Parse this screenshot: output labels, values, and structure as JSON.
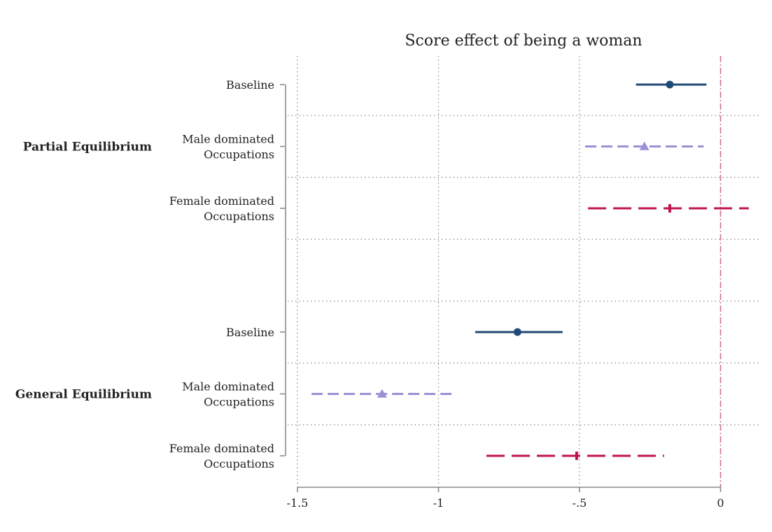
{
  "chart_data": {
    "type": "coefficient-plot",
    "title": "Score effect of being a woman",
    "xlim": [
      -1.5,
      0.13
    ],
    "x_ticks": [
      -1.5,
      -1,
      -0.5,
      0
    ],
    "x_tick_labels": [
      "-1.5",
      "-1",
      "-.5",
      "0"
    ],
    "reference_line_x": 0,
    "grid": "dotted",
    "groups": [
      {
        "label": "Partial Equilibrium",
        "rows": [
          {
            "label": [
              "Baseline"
            ],
            "series": "baseline",
            "estimate": -0.18,
            "ci": [
              -0.3,
              -0.05
            ]
          },
          {
            "label": [
              "Male dominated",
              "Occupations"
            ],
            "series": "male",
            "estimate": -0.27,
            "ci": [
              -0.48,
              -0.06
            ]
          },
          {
            "label": [
              "Female dominated",
              "Occupations"
            ],
            "series": "female",
            "estimate": -0.18,
            "ci": [
              -0.47,
              0.1
            ]
          }
        ]
      },
      {
        "label": "General Equilibrium",
        "rows": [
          {
            "label": [
              "Baseline"
            ],
            "series": "baseline",
            "estimate": -0.72,
            "ci": [
              -0.87,
              -0.56
            ]
          },
          {
            "label": [
              "Male dominated",
              "Occupations"
            ],
            "series": "male",
            "estimate": -1.2,
            "ci": [
              -1.45,
              -0.94
            ]
          },
          {
            "label": [
              "Female dominated",
              "Occupations"
            ],
            "series": "female",
            "estimate": -0.51,
            "ci": [
              -0.83,
              -0.2
            ]
          }
        ]
      }
    ],
    "series_styles": {
      "baseline": {
        "color": "#1f4a75",
        "marker": "circle",
        "dash": "solid"
      },
      "male": {
        "color": "#9b8fd6",
        "marker": "triangle",
        "dash": "short-dash"
      },
      "female": {
        "color": "#c0144a",
        "marker": "vertical-bar",
        "dash": "long-dash"
      }
    }
  }
}
